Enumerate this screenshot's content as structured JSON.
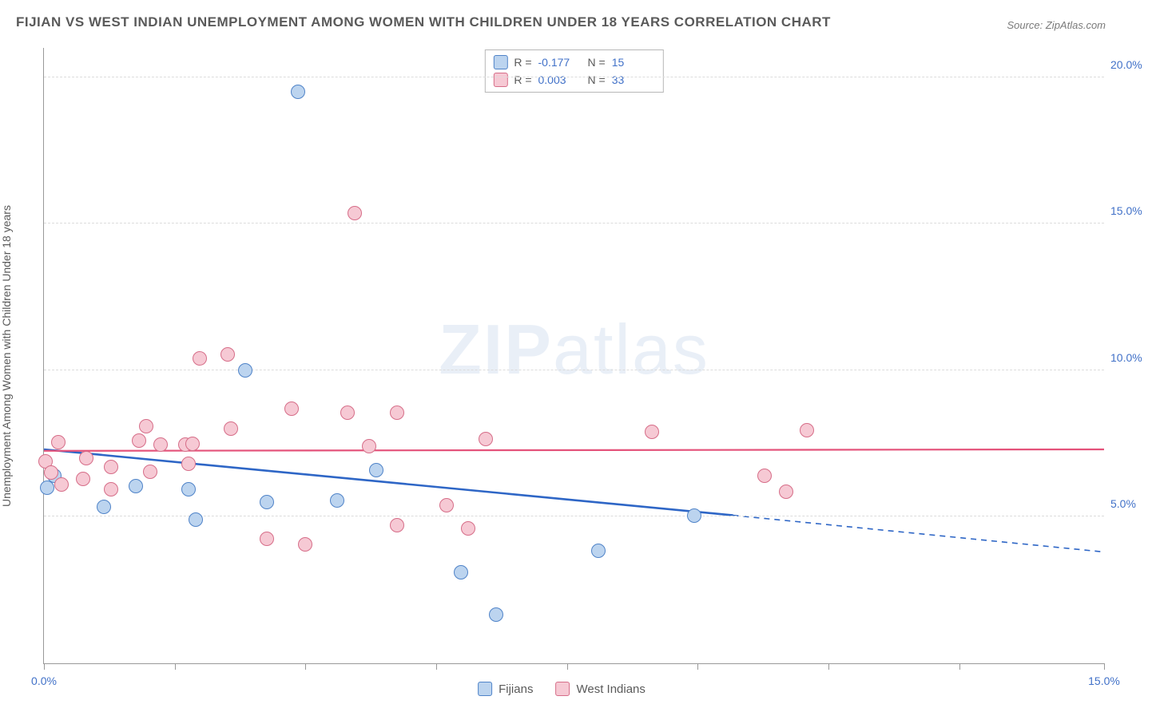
{
  "title": "FIJIAN VS WEST INDIAN UNEMPLOYMENT AMONG WOMEN WITH CHILDREN UNDER 18 YEARS CORRELATION CHART",
  "source": "Source: ZipAtlas.com",
  "ylabel": "Unemployment Among Women with Children Under 18 years",
  "watermark_zip": "ZIP",
  "watermark_atlas": "atlas",
  "chart": {
    "type": "scatter",
    "xlim": [
      0,
      15
    ],
    "ylim": [
      0,
      21
    ],
    "y_ticks": [
      5,
      10,
      15,
      20
    ],
    "y_tick_labels": [
      "5.0%",
      "10.0%",
      "15.0%",
      "20.0%"
    ],
    "x_ticks": [
      0,
      1.85,
      3.7,
      5.55,
      7.4,
      9.25,
      11.1,
      12.95,
      15
    ],
    "x_tick_labels": {
      "0": "0.0%",
      "15": "15.0%"
    },
    "background_color": "#ffffff",
    "grid_color": "#dcdcdc",
    "axis_color": "#999999",
    "marker_radius": 9,
    "marker_border_width": 1.2,
    "series": [
      {
        "name": "Fijians",
        "fill": "#bcd4ef",
        "stroke": "#4f83c8",
        "R": "-0.177",
        "N": "15",
        "trend": {
          "x1": 0,
          "y1": 7.3,
          "x2_solid": 9.75,
          "y2_solid": 5.05,
          "x2": 15,
          "y2": 3.8,
          "stroke": "#2e66c6",
          "width": 2.6
        },
        "points": [
          [
            0.05,
            6.0
          ],
          [
            0.15,
            6.4
          ],
          [
            0.85,
            5.35
          ],
          [
            1.3,
            6.05
          ],
          [
            2.05,
            5.95
          ],
          [
            2.15,
            4.9
          ],
          [
            2.85,
            10.0
          ],
          [
            3.15,
            5.5
          ],
          [
            3.6,
            19.5
          ],
          [
            4.15,
            5.55
          ],
          [
            4.7,
            6.6
          ],
          [
            5.9,
            3.1
          ],
          [
            6.4,
            1.65
          ],
          [
            7.85,
            3.85
          ],
          [
            9.2,
            5.05
          ]
        ]
      },
      {
        "name": "West Indians",
        "fill": "#f6c9d4",
        "stroke": "#d66d88",
        "R": "0.003",
        "N": "33",
        "trend": {
          "x1": 0,
          "y1": 7.25,
          "x2_solid": 15,
          "y2_solid": 7.3,
          "x2": 15,
          "y2": 7.3,
          "stroke": "#e4527a",
          "width": 2.2
        },
        "points": [
          [
            0.02,
            6.9
          ],
          [
            0.1,
            6.5
          ],
          [
            0.2,
            7.55
          ],
          [
            0.25,
            6.1
          ],
          [
            0.55,
            6.3
          ],
          [
            0.6,
            7.0
          ],
          [
            0.95,
            5.95
          ],
          [
            0.95,
            6.7
          ],
          [
            1.35,
            7.6
          ],
          [
            1.45,
            8.1
          ],
          [
            1.5,
            6.55
          ],
          [
            1.65,
            7.45
          ],
          [
            2.0,
            7.45
          ],
          [
            2.05,
            6.8
          ],
          [
            2.1,
            7.5
          ],
          [
            2.2,
            10.4
          ],
          [
            2.6,
            10.55
          ],
          [
            2.65,
            8.0
          ],
          [
            3.15,
            4.25
          ],
          [
            3.5,
            8.7
          ],
          [
            3.7,
            4.05
          ],
          [
            4.3,
            8.55
          ],
          [
            4.4,
            15.35
          ],
          [
            4.6,
            7.4
          ],
          [
            5.0,
            4.7
          ],
          [
            5.0,
            8.55
          ],
          [
            5.7,
            5.4
          ],
          [
            6.25,
            7.65
          ],
          [
            8.6,
            7.9
          ],
          [
            10.2,
            6.4
          ],
          [
            10.5,
            5.85
          ],
          [
            10.8,
            7.95
          ],
          [
            6.0,
            4.6
          ]
        ]
      }
    ]
  },
  "legend_top": {
    "r_label": "R =",
    "n_label": "N ="
  },
  "legend_bottom": {
    "items": [
      "Fijians",
      "West Indians"
    ]
  }
}
